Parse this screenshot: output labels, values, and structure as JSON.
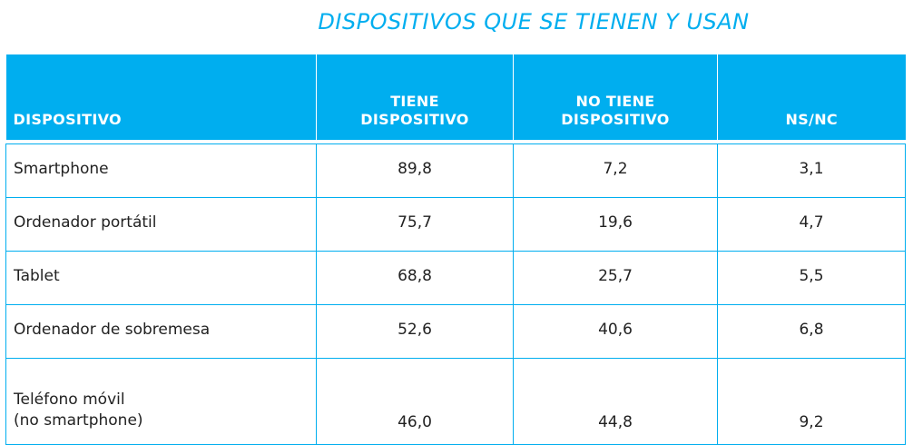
{
  "title": "DISPOSITIVOS QUE SE TIENEN Y USAN",
  "columns": [
    {
      "line1": "DISPOSITIVO",
      "line2": ""
    },
    {
      "line1": "TIENE",
      "line2": "DISPOSITIVO"
    },
    {
      "line1": "NO TIENE",
      "line2": "DISPOSITIVO"
    },
    {
      "line1": "NS/NC",
      "line2": ""
    }
  ],
  "rows": [
    {
      "device": "Smartphone",
      "device_line2": "",
      "tiene": "89,8",
      "no_tiene": "7,2",
      "nsnc": "3,1"
    },
    {
      "device": "Ordenador portátil",
      "device_line2": "",
      "tiene": "75,7",
      "no_tiene": "19,6",
      "nsnc": "4,7"
    },
    {
      "device": "Tablet",
      "device_line2": "",
      "tiene": "68,8",
      "no_tiene": "25,7",
      "nsnc": "5,5"
    },
    {
      "device": "Ordenador de sobremesa",
      "device_line2": "",
      "tiene": "52,6",
      "no_tiene": "40,6",
      "nsnc": "6,8"
    },
    {
      "device": "Teléfono móvil",
      "device_line2": "(no smartphone)",
      "tiene": "46,0",
      "no_tiene": "44,8",
      "nsnc": "9,2"
    }
  ],
  "colors": {
    "accent": "#00aeef",
    "text": "#222222",
    "header_text": "#ffffff"
  }
}
